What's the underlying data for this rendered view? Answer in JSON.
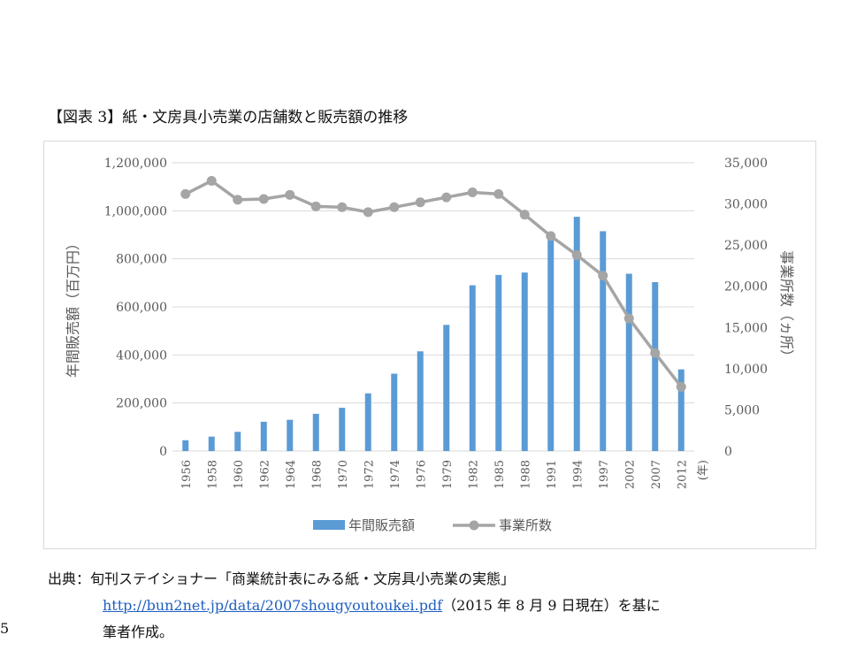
{
  "figure": {
    "title": "【図表 3】紙・文房具小売業の店舗数と販売額の推移"
  },
  "chart_data": {
    "type": "bar+line",
    "categories": [
      "1956",
      "1958",
      "1960",
      "1962",
      "1964",
      "1968",
      "1970",
      "1972",
      "1974",
      "1976",
      "1979",
      "1982",
      "1985",
      "1988",
      "1991",
      "1994",
      "1997",
      "2002",
      "2007",
      "2012"
    ],
    "xlabel": "(年)",
    "y_left_label": "年間販売額（百万円）",
    "y_right_label": "事業所数（ヵ所）",
    "y_left_lim": [
      0,
      1200000
    ],
    "y_right_lim": [
      0,
      35000
    ],
    "y_left_ticks": [
      "0",
      "200,000",
      "400,000",
      "600,000",
      "800,000",
      "1,000,000",
      "1,200,000"
    ],
    "y_right_ticks": [
      "0",
      "5,000",
      "10,000",
      "15,000",
      "20,000",
      "25,000",
      "30,000",
      "35,000"
    ],
    "legend_position": "bottom",
    "grid": true,
    "series": [
      {
        "name": "年間販売額",
        "type": "bar",
        "axis": "left",
        "color": "#5b9bd5",
        "values": [
          45000,
          60000,
          80000,
          122000,
          130000,
          155000,
          180000,
          240000,
          322000,
          415000,
          525000,
          690000,
          733000,
          743000,
          900000,
          975000,
          915000,
          738000,
          703000,
          340000
        ]
      },
      {
        "name": "事業所数",
        "type": "line",
        "axis": "right",
        "color": "#a5a5a5",
        "values": [
          31200,
          32800,
          30500,
          30600,
          31100,
          29700,
          29600,
          29000,
          29600,
          30200,
          30800,
          31400,
          31200,
          28700,
          26100,
          23800,
          21300,
          16100,
          11900,
          7800
        ]
      }
    ]
  },
  "source": {
    "label": "出典：旬刊ステイショナー「商業統計表にみる紙・文房具小売業の実態」",
    "link": "http://bun2net.jp/data/2007shougyoutoukei.pdf",
    "after_link": "（2015 年 8 月 9 日現在）を基に",
    "line3": "筆者作成。"
  },
  "page_number": "5"
}
